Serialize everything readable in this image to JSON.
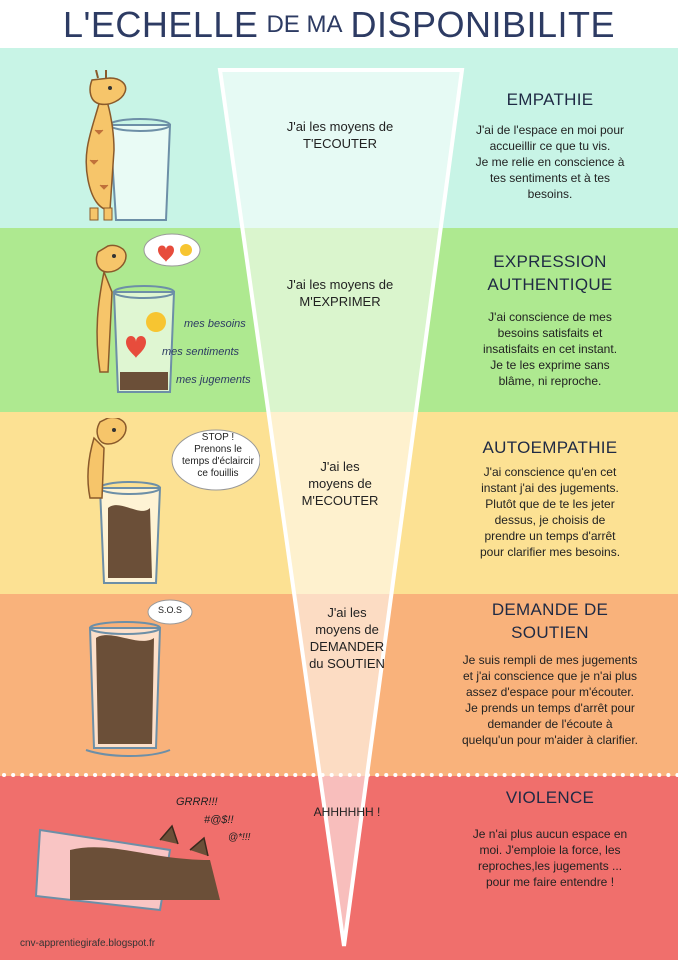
{
  "title": {
    "part1": "L'ECHELLE",
    "part2": "DE MA",
    "part3": "DISPONIBILITE"
  },
  "colors": {
    "title": "#2d3b63",
    "empathy": "#c8f4e6",
    "expression": "#aee990",
    "autoempathy": "#fce193",
    "support": "#f9b27b",
    "violence": "#f06f6c"
  },
  "levels": [
    {
      "center": "J'ai les moyens de\nT'ECOUTER",
      "heading": "EMPATHIE",
      "description": "J'ai de l'espace en moi pour\naccueillir ce que tu vis.\nJe me relie en conscience à\ntes sentiments et à tes\nbesoins."
    },
    {
      "center": "J'ai les moyens de\nM'EXPRIMER",
      "heading": "EXPRESSION\nAUTHENTIQUE",
      "description": "J'ai conscience de mes\nbesoins satisfaits et\ninsatisfaits en cet instant.\nJe te les exprime sans\nblâme, ni reproche."
    },
    {
      "center": "J'ai les\nmoyens de\nM'ECOUTER",
      "heading": "AUTOEMPATHIE",
      "description": "J'ai conscience qu'en cet\ninstant j'ai des jugements.\nPlutôt que de te les jeter\ndessus, je choisis de\nprendre un temps d'arrêt\npour clarifier mes besoins."
    },
    {
      "center": "J'ai les\nmoyens de\nDEMANDER\ndu SOUTIEN",
      "heading": "DEMANDE DE\nSOUTIEN",
      "description": "Je suis rempli de mes jugements\net j'ai conscience que je n'ai plus\nassez d'espace pour m'écouter.\nJe prends un temps d'arrêt pour\ndemander de l'écoute à\nquelqu'un pour m'aider à clarifier."
    },
    {
      "center": "AHHHHHH !",
      "heading": "VIOLENCE",
      "description": "Je n'ai plus aucun espace en\nmoi. J'emploie la force, les\nreproches,les jugements ...\npour me faire entendre !"
    }
  ],
  "annotations": {
    "besoins": "mes besoins",
    "sentiments": "mes sentiments",
    "jugements": "mes jugements",
    "stop_bubble": "STOP !\nPrenons le\ntemps d'éclaircir\nce fouillis",
    "sos_bubble": "S.O.S",
    "growl1": "GRRR!!!",
    "growl2": "#@$!!",
    "growl3": "@*!!!"
  },
  "credit": "cnv-apprentiegirafe.blogspot.fr"
}
